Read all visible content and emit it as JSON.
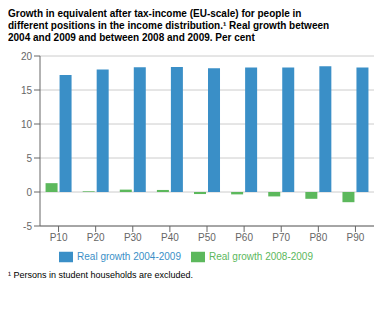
{
  "chart_data": {
    "type": "bar",
    "title": "Growth in equivalent after tax-income (EU-scale) for people in\ndifferent positions in the income distribution.¹ Real growth between\n2004 and 2009 and between 2008 and 2009. Per cent",
    "categories": [
      "P10",
      "P20",
      "P30",
      "P40",
      "P50",
      "P60",
      "P70",
      "P80",
      "P90"
    ],
    "series": [
      {
        "name": "Real growth 2008-2009",
        "color": "#5cb85c",
        "values": [
          1.3,
          0.1,
          0.35,
          0.3,
          -0.3,
          -0.35,
          -0.65,
          -1.0,
          -1.5
        ]
      },
      {
        "name": "Real growth 2004-2009",
        "color": "#3a8fc7",
        "values": [
          17.2,
          18.0,
          18.35,
          18.4,
          18.2,
          18.3,
          18.3,
          18.5,
          18.3
        ]
      }
    ],
    "ylim": [
      -5,
      20
    ],
    "yticks": [
      -5,
      0,
      5,
      10,
      15,
      20
    ],
    "grid": true,
    "legend": "bottom",
    "annotations": [
      "¹ Persons in student households are excluded."
    ]
  }
}
